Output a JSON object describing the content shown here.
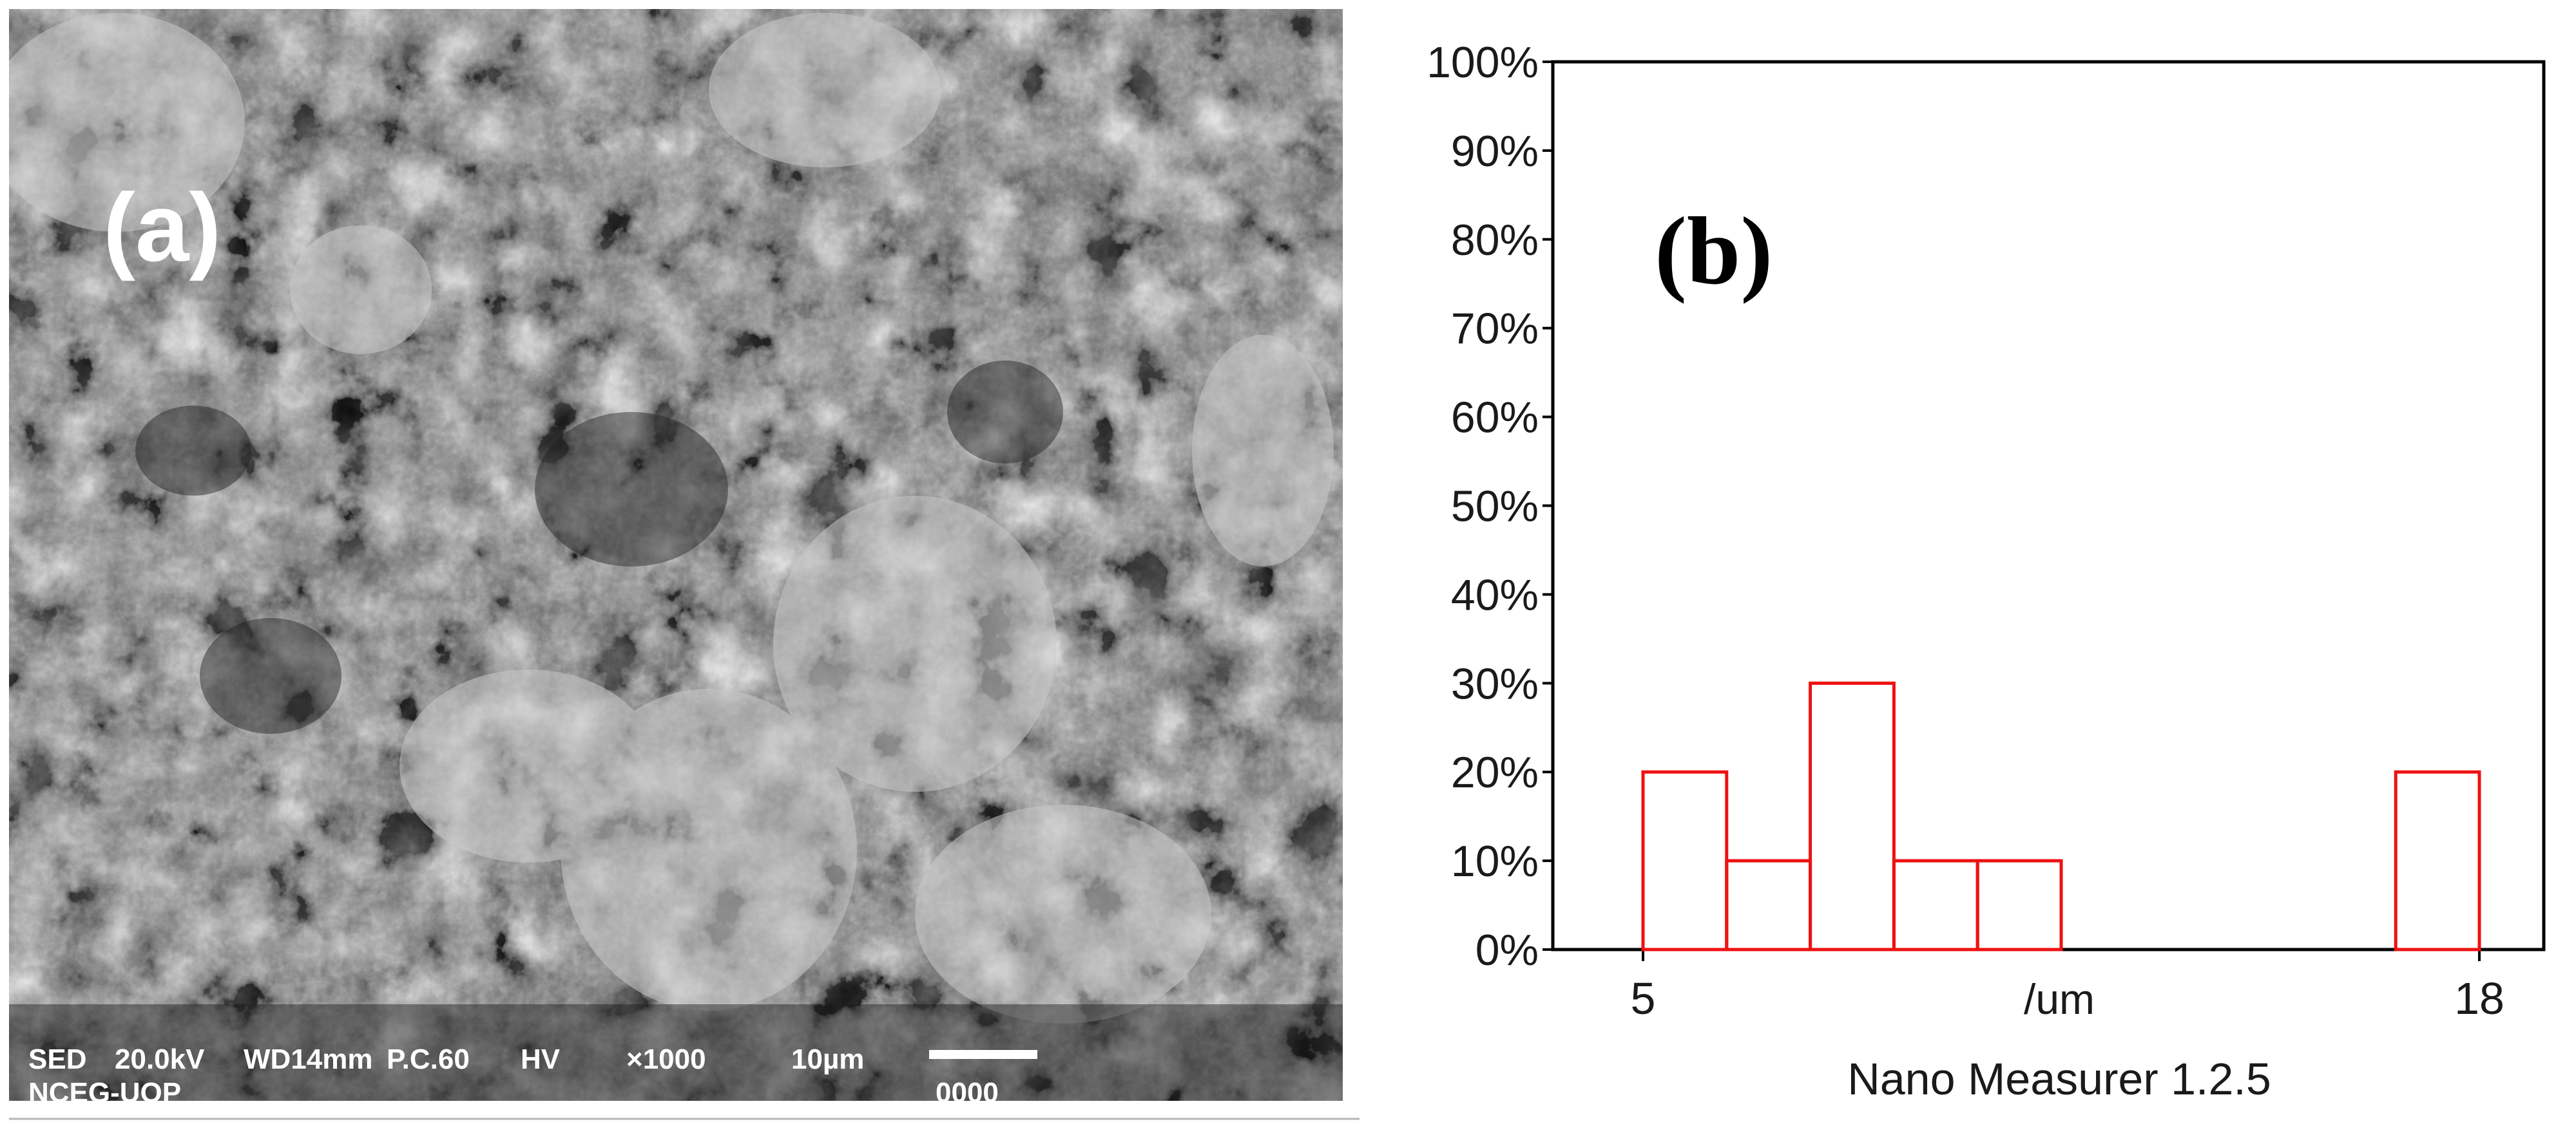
{
  "panel_a": {
    "label": "(a)",
    "info_line1": {
      "detector": "SED",
      "voltage": "20.0kV",
      "working_distance": "WD14mm",
      "probe_current": "P.C.60",
      "vacuum": "HV",
      "magnification": "×1000",
      "scale_text": "10µm"
    },
    "info_line2": {
      "lab": "NCEG-UOP",
      "image_number": "0000"
    }
  },
  "panel_b": {
    "label": "(b)",
    "software_caption": "Nano Measurer 1.2.5"
  },
  "colors": {
    "bar_stroke": "#ee1111",
    "axis": "#000000",
    "sem_dark": "#2e2e2e",
    "sem_light": "#bdbdbd"
  },
  "chart_data": {
    "type": "bar",
    "title": "",
    "xlabel": "/um",
    "ylabel": "",
    "xlim": [
      5,
      18
    ],
    "ylim": [
      0,
      100
    ],
    "x_tick_labels": [
      "5",
      "18"
    ],
    "y_tick_labels": [
      "0%",
      "10%",
      "20%",
      "30%",
      "40%",
      "50%",
      "60%",
      "70%",
      "80%",
      "90%",
      "100%"
    ],
    "bin_width": 1.3,
    "bins": [
      {
        "start": 5.0,
        "end": 6.3,
        "value": 20
      },
      {
        "start": 6.3,
        "end": 7.6,
        "value": 10
      },
      {
        "start": 7.6,
        "end": 8.9,
        "value": 30
      },
      {
        "start": 8.9,
        "end": 10.2,
        "value": 10
      },
      {
        "start": 10.2,
        "end": 11.5,
        "value": 10
      },
      {
        "start": 16.7,
        "end": 18.0,
        "value": 20
      }
    ],
    "grid": false,
    "legend": "none"
  }
}
